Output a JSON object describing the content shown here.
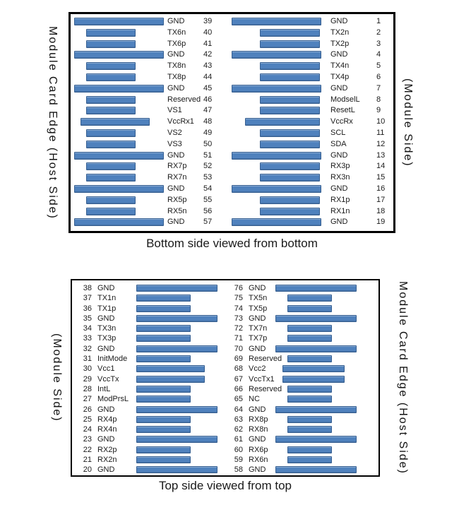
{
  "colors": {
    "pad_fill": "#4f81bd",
    "pad_border": "#365f91",
    "panel_border": "#000000",
    "text": "#1a1a1a"
  },
  "panels": [
    {
      "caption": "Bottom side viewed from bottom",
      "left_edge_label": "Module Card Edge (Host Side)",
      "right_edge_label": "(Module Side)",
      "columns": [
        {
          "pins": [
            {
              "num": 39,
              "label": "GND",
              "type": "gnd"
            },
            {
              "num": 40,
              "label": "TX6n",
              "type": "sig"
            },
            {
              "num": 41,
              "label": "TX6p",
              "type": "sig"
            },
            {
              "num": 42,
              "label": "GND",
              "type": "gnd"
            },
            {
              "num": 43,
              "label": "TX8n",
              "type": "sig"
            },
            {
              "num": 44,
              "label": "TX8p",
              "type": "sig"
            },
            {
              "num": 45,
              "label": "GND",
              "type": "gnd"
            },
            {
              "num": 46,
              "label": "Reserved",
              "type": "sig"
            },
            {
              "num": 47,
              "label": "VS1",
              "type": "sig"
            },
            {
              "num": 48,
              "label": "VccRx1",
              "type": "vcc"
            },
            {
              "num": 49,
              "label": "VS2",
              "type": "sig"
            },
            {
              "num": 50,
              "label": "VS3",
              "type": "sig"
            },
            {
              "num": 51,
              "label": "GND",
              "type": "gnd"
            },
            {
              "num": 52,
              "label": "RX7p",
              "type": "sig"
            },
            {
              "num": 53,
              "label": "RX7n",
              "type": "sig"
            },
            {
              "num": 54,
              "label": "GND",
              "type": "gnd"
            },
            {
              "num": 55,
              "label": "RX5p",
              "type": "sig"
            },
            {
              "num": 56,
              "label": "RX5n",
              "type": "sig"
            },
            {
              "num": 57,
              "label": "GND",
              "type": "gnd"
            }
          ]
        },
        {
          "pins": [
            {
              "num": 1,
              "label": "GND",
              "type": "gnd"
            },
            {
              "num": 2,
              "label": "TX2n",
              "type": "sig"
            },
            {
              "num": 3,
              "label": "TX2p",
              "type": "sig"
            },
            {
              "num": 4,
              "label": "GND",
              "type": "gnd"
            },
            {
              "num": 5,
              "label": "TX4n",
              "type": "sig"
            },
            {
              "num": 6,
              "label": "TX4p",
              "type": "sig"
            },
            {
              "num": 7,
              "label": "GND",
              "type": "gnd"
            },
            {
              "num": 8,
              "label": "ModselL",
              "type": "sig"
            },
            {
              "num": 9,
              "label": "ResetL",
              "type": "sig"
            },
            {
              "num": 10,
              "label": "VccRx",
              "type": "vcc"
            },
            {
              "num": 11,
              "label": "SCL",
              "type": "sig"
            },
            {
              "num": 12,
              "label": "SDA",
              "type": "sig"
            },
            {
              "num": 13,
              "label": "GND",
              "type": "gnd"
            },
            {
              "num": 14,
              "label": "RX3p",
              "type": "sig"
            },
            {
              "num": 15,
              "label": "RX3n",
              "type": "sig"
            },
            {
              "num": 16,
              "label": "GND",
              "type": "gnd"
            },
            {
              "num": 17,
              "label": "RX1p",
              "type": "sig"
            },
            {
              "num": 18,
              "label": "RX1n",
              "type": "sig"
            },
            {
              "num": 19,
              "label": "GND",
              "type": "gnd"
            }
          ]
        }
      ]
    },
    {
      "caption": "Top side viewed from top",
      "left_edge_label": "(Module Side)",
      "right_edge_label": "Module Card Edge (Host Side)",
      "columns": [
        {
          "pins": [
            {
              "num": 38,
              "label": "GND",
              "type": "gnd"
            },
            {
              "num": 37,
              "label": "TX1n",
              "type": "sig"
            },
            {
              "num": 36,
              "label": "TX1p",
              "type": "sig"
            },
            {
              "num": 35,
              "label": "GND",
              "type": "gnd"
            },
            {
              "num": 34,
              "label": "TX3n",
              "type": "sig"
            },
            {
              "num": 33,
              "label": "TX3p",
              "type": "sig"
            },
            {
              "num": 32,
              "label": "GND",
              "type": "gnd"
            },
            {
              "num": 31,
              "label": "InitMode",
              "type": "sig"
            },
            {
              "num": 30,
              "label": "Vcc1",
              "type": "vcc"
            },
            {
              "num": 29,
              "label": "VccTx",
              "type": "vcc"
            },
            {
              "num": 28,
              "label": "IntL",
              "type": "sig"
            },
            {
              "num": 27,
              "label": "ModPrsL",
              "type": "sig"
            },
            {
              "num": 26,
              "label": "GND",
              "type": "gnd"
            },
            {
              "num": 25,
              "label": "RX4p",
              "type": "sig"
            },
            {
              "num": 24,
              "label": "RX4n",
              "type": "sig"
            },
            {
              "num": 23,
              "label": "GND",
              "type": "gnd"
            },
            {
              "num": 22,
              "label": "RX2p",
              "type": "sig"
            },
            {
              "num": 21,
              "label": "RX2n",
              "type": "sig"
            },
            {
              "num": 20,
              "label": "GND",
              "type": "gnd"
            }
          ]
        },
        {
          "pins": [
            {
              "num": 76,
              "label": "GND",
              "type": "gnd"
            },
            {
              "num": 75,
              "label": "TX5n",
              "type": "sig"
            },
            {
              "num": 74,
              "label": "TX5p",
              "type": "sig"
            },
            {
              "num": 73,
              "label": "GND",
              "type": "gnd"
            },
            {
              "num": 72,
              "label": "TX7n",
              "type": "sig"
            },
            {
              "num": 71,
              "label": "TX7p",
              "type": "sig"
            },
            {
              "num": 70,
              "label": "GND",
              "type": "gnd"
            },
            {
              "num": 69,
              "label": "Reserved",
              "type": "sig"
            },
            {
              "num": 68,
              "label": "Vcc2",
              "type": "vcc"
            },
            {
              "num": 67,
              "label": "VccTx1",
              "type": "vcc"
            },
            {
              "num": 66,
              "label": "Reserved",
              "type": "sig"
            },
            {
              "num": 65,
              "label": "NC",
              "type": "sig"
            },
            {
              "num": 64,
              "label": "GND",
              "type": "gnd"
            },
            {
              "num": 63,
              "label": "RX8p",
              "type": "sig"
            },
            {
              "num": 62,
              "label": "RX8n",
              "type": "sig"
            },
            {
              "num": 61,
              "label": "GND",
              "type": "gnd"
            },
            {
              "num": 60,
              "label": "RX6p",
              "type": "sig"
            },
            {
              "num": 59,
              "label": "RX6n",
              "type": "sig"
            },
            {
              "num": 58,
              "label": "GND",
              "type": "gnd"
            }
          ]
        }
      ]
    }
  ]
}
